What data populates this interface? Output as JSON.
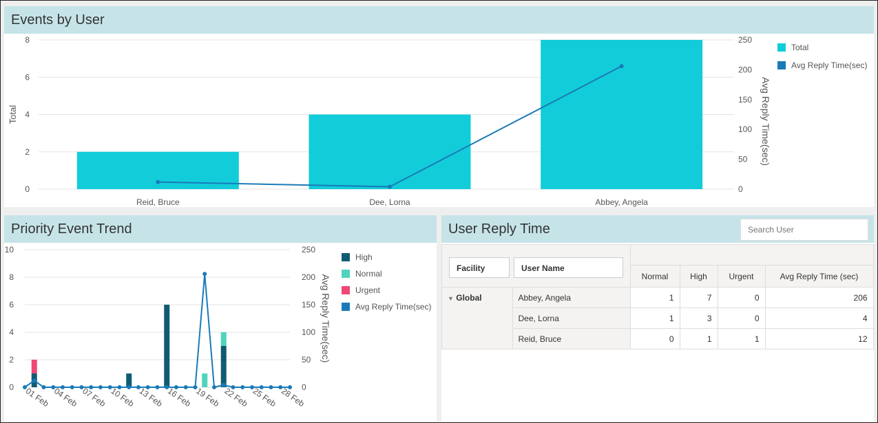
{
  "events_panel": {
    "title": "Events by User",
    "y_axis_label": "Total",
    "y2_axis_label": "Avg Reply Time(sec)",
    "legend": [
      {
        "label": "Total",
        "color": "#12cdd9"
      },
      {
        "label": "Avg Reply Time(sec)",
        "color": "#1a7ab8"
      }
    ]
  },
  "trend_panel": {
    "title": "Priority Event Trend",
    "y2_axis_label": "Avg Reply Time(sec)",
    "legend": [
      {
        "label": "High",
        "color": "#0f5c72"
      },
      {
        "label": "Normal",
        "color": "#4fd3bc"
      },
      {
        "label": "Urgent",
        "color": "#ef4776"
      },
      {
        "label": "Avg Reply Time(sec)",
        "color": "#1a7ab8"
      }
    ]
  },
  "reply_panel": {
    "title": "User Reply Time",
    "search_placeholder": "Search User",
    "facility_header": "Facility",
    "username_header": "User Name",
    "columns": [
      "Normal",
      "High",
      "Urgent",
      "Avg Reply Time (sec)"
    ],
    "group": "Global",
    "rows": [
      {
        "user": "Abbey, Angela",
        "normal": "1",
        "high": "7",
        "urgent": "0",
        "avg": "206"
      },
      {
        "user": "Dee, Lorna",
        "normal": "1",
        "high": "3",
        "urgent": "0",
        "avg": "4"
      },
      {
        "user": "Reid, Bruce",
        "normal": "0",
        "high": "1",
        "urgent": "1",
        "avg": "12"
      }
    ]
  },
  "chart_data": [
    {
      "type": "bar",
      "title": "Events by User",
      "categories": [
        "Reid, Bruce",
        "Dee, Lorna",
        "Abbey, Angela"
      ],
      "series": [
        {
          "name": "Total",
          "type": "bar",
          "axis": "left",
          "values": [
            2,
            4,
            8
          ]
        },
        {
          "name": "Avg Reply Time(sec)",
          "type": "line",
          "axis": "right",
          "values": [
            12,
            4,
            206
          ]
        }
      ],
      "ylabel": "Total",
      "y2label": "Avg Reply Time(sec)",
      "ylim": [
        0,
        8
      ],
      "y2lim": [
        0,
        250
      ],
      "yticks": [
        0,
        2,
        4,
        6,
        8
      ],
      "y2ticks": [
        0,
        50,
        100,
        150,
        200,
        250
      ],
      "legend_position": "right"
    },
    {
      "type": "bar",
      "stacked": true,
      "title": "Priority Event Trend",
      "x": [
        "31 Jan",
        "01 Feb",
        "02 Feb",
        "03 Feb",
        "04 Feb",
        "05 Feb",
        "06 Feb",
        "07 Feb",
        "08 Feb",
        "09 Feb",
        "10 Feb",
        "11 Feb",
        "12 Feb",
        "13 Feb",
        "14 Feb",
        "15 Feb",
        "16 Feb",
        "17 Feb",
        "18 Feb",
        "19 Feb",
        "20 Feb",
        "21 Feb",
        "22 Feb",
        "23 Feb",
        "24 Feb",
        "25 Feb",
        "26 Feb",
        "27 Feb",
        "28 Feb"
      ],
      "xtick_labels": [
        "01 Feb",
        "04 Feb",
        "07 Feb",
        "10 Feb",
        "13 Feb",
        "16 Feb",
        "19 Feb",
        "22 Feb",
        "25 Feb",
        "28 Feb"
      ],
      "series": [
        {
          "name": "High",
          "type": "bar",
          "axis": "left",
          "values": [
            0,
            1,
            0,
            0,
            0,
            0,
            0,
            0,
            0,
            0,
            0,
            1,
            0,
            0,
            0,
            6,
            0,
            0,
            0,
            0,
            0,
            3,
            0,
            0,
            0,
            0,
            0,
            0,
            0
          ]
        },
        {
          "name": "Normal",
          "type": "bar",
          "axis": "left",
          "values": [
            0,
            0,
            0,
            0,
            0,
            0,
            0,
            0,
            0,
            0,
            0,
            0,
            0,
            0,
            0,
            0,
            0,
            0,
            0,
            1,
            0,
            1,
            0,
            0,
            0,
            0,
            0,
            0,
            0
          ]
        },
        {
          "name": "Urgent",
          "type": "bar",
          "axis": "left",
          "values": [
            0,
            1,
            0,
            0,
            0,
            0,
            0,
            0,
            0,
            0,
            0,
            0,
            0,
            0,
            0,
            0,
            0,
            0,
            0,
            0,
            0,
            0,
            0,
            0,
            0,
            0,
            0,
            0,
            0
          ]
        },
        {
          "name": "Avg Reply Time(sec)",
          "type": "line",
          "axis": "right",
          "values": [
            0,
            12,
            0,
            0,
            0,
            0,
            0,
            0,
            0,
            0,
            0,
            0,
            0,
            0,
            0,
            0,
            0,
            0,
            0,
            206,
            0,
            4,
            0,
            0,
            0,
            0,
            0,
            0,
            0
          ]
        }
      ],
      "ylim": [
        0,
        10
      ],
      "y2lim": [
        0,
        250
      ],
      "yticks": [
        0,
        2,
        4,
        6,
        8,
        10
      ],
      "y2ticks": [
        0,
        50,
        100,
        150,
        200,
        250
      ],
      "y2label": "Avg Reply Time(sec)",
      "legend_position": "right"
    }
  ]
}
